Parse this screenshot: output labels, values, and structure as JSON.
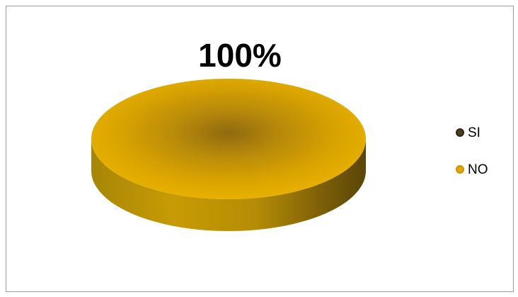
{
  "chart_data": {
    "type": "pie",
    "title": "",
    "categories": [
      "SI",
      "NO"
    ],
    "values": [
      0,
      100
    ],
    "unit": "%",
    "data_labels": [
      "",
      "100%"
    ],
    "legend_position": "right",
    "colors": {
      "SI": "#4a3d20",
      "NO": "#e0a800"
    },
    "style": "3d"
  }
}
